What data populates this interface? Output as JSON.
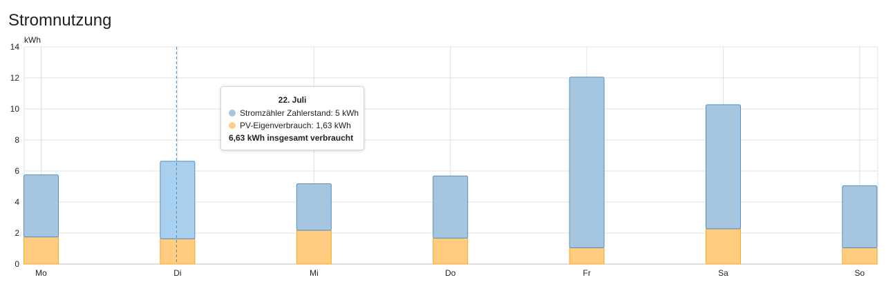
{
  "title": "Stromnutzung",
  "chart_data": {
    "type": "bar",
    "stacked": true,
    "categories": [
      "Mo",
      "Di",
      "Mi",
      "Do",
      "Fr",
      "Sa",
      "So"
    ],
    "series": [
      {
        "name": "PV-Eigenverbrauch",
        "values": [
          1.75,
          1.63,
          2.18,
          1.68,
          1.05,
          2.27,
          1.05
        ],
        "color": "#ffcc80",
        "stroke": "#f5a623"
      },
      {
        "name": "Stromzähler Zahlerstand",
        "values": [
          4.0,
          5.0,
          3.0,
          4.0,
          11.0,
          8.0,
          4.0
        ],
        "color": "#a6c6e0",
        "stroke": "#4c8fc2"
      }
    ],
    "yunit": "kWh",
    "ylim": [
      0,
      14
    ],
    "yticks": [
      0,
      2,
      4,
      6,
      8,
      10,
      12,
      14
    ],
    "grid": true,
    "highlight_index": 1,
    "highlight_color": "#a9d0ef"
  },
  "tooltip": {
    "date": "22. Juli",
    "rows": [
      {
        "label": "Stromzähler Zahlerstand: 5 kWh",
        "color": "#a6c6e0"
      },
      {
        "label": "PV-Eigenverbrauch: 1,63 kWh",
        "color": "#ffcc80"
      }
    ],
    "total": "6,63 kWh insgesamt verbraucht"
  }
}
